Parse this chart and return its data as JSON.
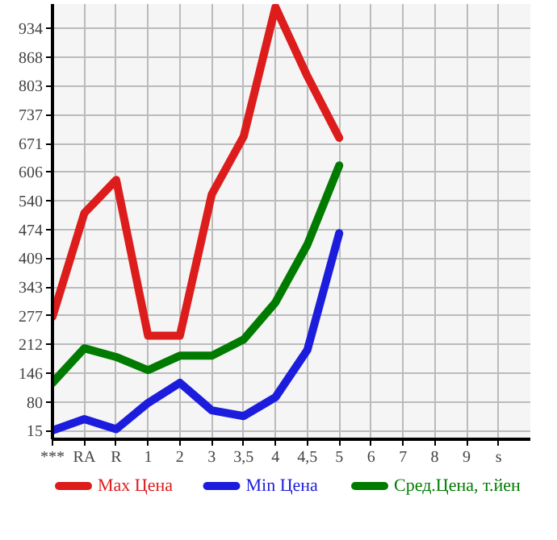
{
  "chart_data": {
    "type": "line",
    "categories": [
      "***",
      "RA",
      "R",
      "1",
      "2",
      "3",
      "3,5",
      "4",
      "4,5",
      "5",
      "6",
      "7",
      "8",
      "9",
      "s"
    ],
    "series": [
      {
        "name": "Max Цена",
        "color": "#dd1c1c",
        "values": [
          275,
          512,
          588,
          232,
          232,
          555,
          687,
          983,
          825,
          684,
          null,
          null,
          null,
          null,
          null
        ]
      },
      {
        "name": "Min Цена",
        "color": "#1c1cdd",
        "values": [
          15,
          41,
          18,
          78,
          124,
          61,
          48,
          91,
          199,
          466,
          null,
          null,
          null,
          null,
          null
        ]
      },
      {
        "name": "Сред.Цена, т.йен",
        "color": "#007b00",
        "values": [
          124,
          203,
          183,
          153,
          186,
          186,
          223,
          308,
          440,
          621,
          null,
          null,
          null,
          null,
          null
        ]
      }
    ],
    "ylim": [
      -5,
      990
    ],
    "yticks": [
      15,
      80,
      146,
      212,
      277,
      343,
      409,
      474,
      540,
      606,
      671,
      737,
      803,
      868,
      934
    ],
    "grid": true,
    "legend": "bottom",
    "marker": "none",
    "line_style": "solid"
  }
}
